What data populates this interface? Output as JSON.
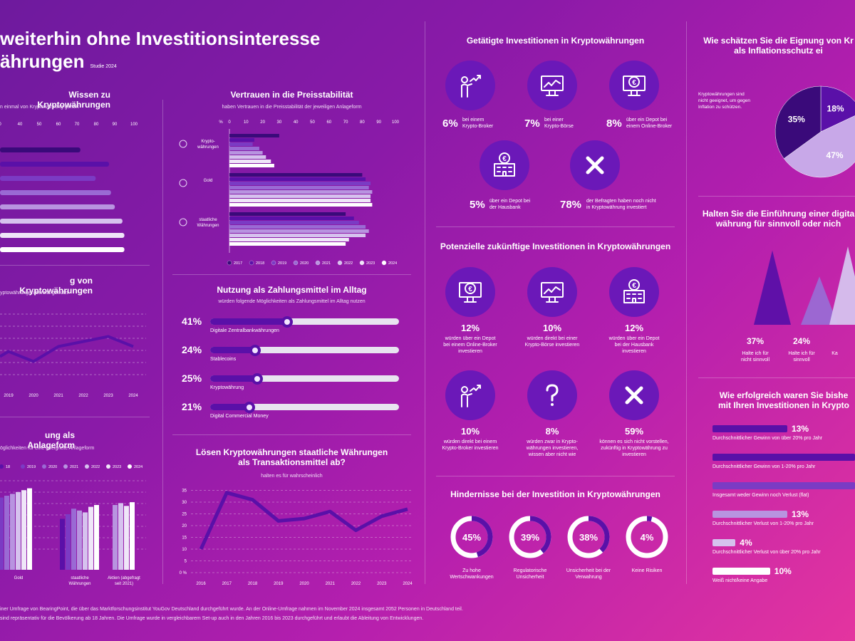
{
  "header": {
    "title_line1": "weiterhin ohne Investitionsinteresse",
    "title_line2": "ährungen",
    "study": "Studie 2024"
  },
  "colors": {
    "c2017": "#3a0a7a",
    "c2018": "#5a10a8",
    "c2019": "#7b3bc4",
    "c2020": "#9a6ad4",
    "c2021": "#b894e0",
    "c2022": "#d6c2ee",
    "c2023": "#efe6f8",
    "c2024": "#ffffff"
  },
  "wissen": {
    "title": "Wissen zu Kryptowährungen",
    "subtitle": "n einmal von Kryptowährung gehört",
    "ticks": [
      "0",
      "40",
      "50",
      "60",
      "70",
      "80",
      "90",
      "100"
    ],
    "values": [
      72,
      87,
      80,
      88,
      90,
      94,
      95,
      95
    ]
  },
  "vertrauen": {
    "title": "Vertrauen in die Preisstabilität",
    "subtitle": "haben Vertrauen in die Preisstabilität der jeweiligen Anlageform",
    "ticks": [
      "%",
      "0",
      "10",
      "20",
      "30",
      "40",
      "50",
      "60",
      "70",
      "80",
      "90",
      "100"
    ],
    "groups": [
      {
        "label": "Krypto-\nwährungen",
        "values": [
          30,
          15,
          14,
          18,
          20,
          22,
          25,
          27
        ]
      },
      {
        "label": "Gold",
        "values": [
          80,
          82,
          85,
          84,
          86,
          85,
          85,
          86
        ]
      },
      {
        "label": "staatliche\nWährungen",
        "values": [
          70,
          75,
          78,
          82,
          84,
          82,
          72,
          70
        ]
      }
    ],
    "legend": [
      "2017",
      "2018",
      "2019",
      "2020",
      "2021",
      "2022",
      "2023",
      "2024"
    ]
  },
  "nutzung_krypto": {
    "title": "g von Kryptowährungen",
    "subtitle": "yptowährungen bereits genutzt",
    "years": [
      "2019",
      "2020",
      "2021",
      "2022",
      "2023",
      "2024"
    ],
    "values": [
      14,
      10,
      16,
      18,
      20,
      16
    ]
  },
  "zahlungsmittel": {
    "title": "Nutzung als Zahlungsmittel im Alltag",
    "subtitle": "würden folgende Möglichkeiten als Zahlungsmittel im Alltag nutzen",
    "items": [
      {
        "pct": "41%",
        "label": "Digitale Zentralbankwährungen",
        "value": 41
      },
      {
        "pct": "24%",
        "label": "Stablecoins",
        "value": 24
      },
      {
        "pct": "25%",
        "label": "Kryptowährung",
        "value": 25
      },
      {
        "pct": "21%",
        "label": "Digital Commercial Money",
        "value": 21
      }
    ]
  },
  "anlageform": {
    "title": "ung als Anlageform",
    "subtitle": "öglichkeiten für eine geeignete Anlageform",
    "legend": [
      "18",
      "2019",
      "2020",
      "2021",
      "2022",
      "2023",
      "2024"
    ],
    "groups": [
      {
        "label": "Gold",
        "values": [
          74,
          78,
          80,
          82,
          84,
          86,
          88
        ]
      },
      {
        "label": "staatliche\nWährungen",
        "values": [
          55,
          60,
          66,
          64,
          62,
          68,
          70
        ]
      },
      {
        "label": "Aktien (abgefragt\nseit 2021)",
        "values": [
          70,
          72,
          69,
          73
        ]
      }
    ]
  },
  "transaktion": {
    "title_line1": "Lösen Kryptowährungen staatliche Währungen",
    "title_line2": "als Transaktionsmittel ab?",
    "subtitle": "halten es für wahrscheinlich",
    "years": [
      "2016",
      "2017",
      "2018",
      "2019",
      "2020",
      "2021",
      "2022",
      "2023",
      "2024"
    ],
    "yticks": [
      "0 %",
      "5",
      "10",
      "15",
      "20",
      "25",
      "30",
      "35"
    ],
    "values": [
      10,
      34,
      31,
      22,
      23,
      26,
      18,
      24,
      27
    ]
  },
  "getaetigt": {
    "title": "Getätigte Investitionen in Kryptowährungen",
    "items": [
      {
        "pct": "6%",
        "label": "bei einem\nKrypto-Broker",
        "icon": "person-chart-icon"
      },
      {
        "pct": "7%",
        "label": "bei einer\nKrypto-Börse",
        "icon": "monitor-chart-icon"
      },
      {
        "pct": "8%",
        "label": "über ein Depot bei\neinem Online-Broker",
        "icon": "monitor-euro-icon"
      },
      {
        "pct": "5%",
        "label": "über ein Depot bei\nder Hausbank",
        "icon": "bank-euro-icon"
      },
      {
        "pct": "78%",
        "label": "der Befragten haben noch nicht\nin Kryptowährung investiert",
        "icon": "cross-icon"
      }
    ]
  },
  "potenziell": {
    "title": "Potenzielle zukünftige Investitionen in Kryptowährungen",
    "items": [
      {
        "pct": "12%",
        "label": "würden über ein Depot\nbei einem Online-Broker\ninvestieren",
        "icon": "monitor-euro-icon"
      },
      {
        "pct": "10%",
        "label": "würden direkt bei einer\nKrypto-Börse investieren",
        "icon": "monitor-chart-icon"
      },
      {
        "pct": "12%",
        "label": "würden über ein Depot\nbei der Hausbank\ninvestieren",
        "icon": "bank-euro-icon"
      },
      {
        "pct": "10%",
        "label": "würden direkt bei einem\nKrypto-Broker investieren",
        "icon": "person-chart-icon"
      },
      {
        "pct": "8%",
        "label": "würden zwar in Krypto-\nwährungen investieren,\nwissen aber nicht wie",
        "icon": "question-icon"
      },
      {
        "pct": "59%",
        "label": "können es sich nicht vorstellen,\nzukünftig in Kryptowährung zu\ninvestieren",
        "icon": "cross-icon"
      }
    ]
  },
  "hindernisse": {
    "title": "Hindernisse bei der Investition in Kryptowährungen",
    "items": [
      {
        "pct": "45%",
        "label": "Zu hohe\nWertschwankungen",
        "value": 45
      },
      {
        "pct": "39%",
        "label": "Regulatorische\nUnsicherheit",
        "value": 39
      },
      {
        "pct": "38%",
        "label": "Unsicherheit bei der\nVerwahrung",
        "value": 38
      },
      {
        "pct": "4%",
        "label": "Keine Risiken",
        "value": 4
      }
    ]
  },
  "inflation": {
    "title_line1": "Wie schätzen Sie die Eignung von Kr",
    "title_line2": "als Inflationsschutz ei",
    "note": "Kryptowährungen sind\nnicht geeignet, um gegen\nInflation zu schützen.",
    "slices": [
      {
        "pct": "18%",
        "value": 18
      },
      {
        "pct": "47%",
        "value": 47
      },
      {
        "pct": "35%",
        "value": 35
      }
    ]
  },
  "digital": {
    "title_line1": "Halten Sie die Einführung einer digita",
    "title_line2": "währung für sinnvoll oder nich",
    "items": [
      {
        "pct": "37%",
        "label": "Halte ich für\nnicht sinnvoll",
        "value": 37
      },
      {
        "pct": "24%",
        "label": "Halte ich für\nsinnvoll",
        "value": 24
      },
      {
        "pct": "",
        "label": "Ka",
        "value": 39
      }
    ]
  },
  "erfolg": {
    "title_line1": "Wie erfolgreich waren Sie bishe",
    "title_line2": "mit Ihren Investitionen in Krypto",
    "items": [
      {
        "pct": "13%",
        "label": "Durchschnittlicher Gewinn von über 20% pro Jahr",
        "value": 13
      },
      {
        "pct": "",
        "label": "Durchschnittlicher Gewinn von 1-20% pro Jahr",
        "value": 28
      },
      {
        "pct": "",
        "label": "Insgesamt weder Gewinn noch Verlust (flat)",
        "value": 32
      },
      {
        "pct": "13%",
        "label": "Durchschnittlicher Verlust von 1-20% pro Jahr",
        "value": 13
      },
      {
        "pct": "4%",
        "label": "Durchschnittlicher Verlust von über 20% pro Jahr",
        "value": 4
      },
      {
        "pct": "10%",
        "label": "Weiß nicht/keine Angabe",
        "value": 10
      }
    ]
  },
  "footer": {
    "line1": "iner Umfrage von BearingPoint, die über das Marktforschungsinstitut YouGov Deutschland durchgeführt wurde. An der Online-Umfrage nahmen im November 2024 insgesamt 2052 Personen in Deutschland teil.",
    "line2": "sind repräsentativ für die Bevölkerung ab 18 Jahren. Die Umfrage wurde in vergleichbarem Set-up auch in den Jahren 2016 bis 2023 durchgeführt und erlaubt die Ableitung von Entwicklungen."
  }
}
